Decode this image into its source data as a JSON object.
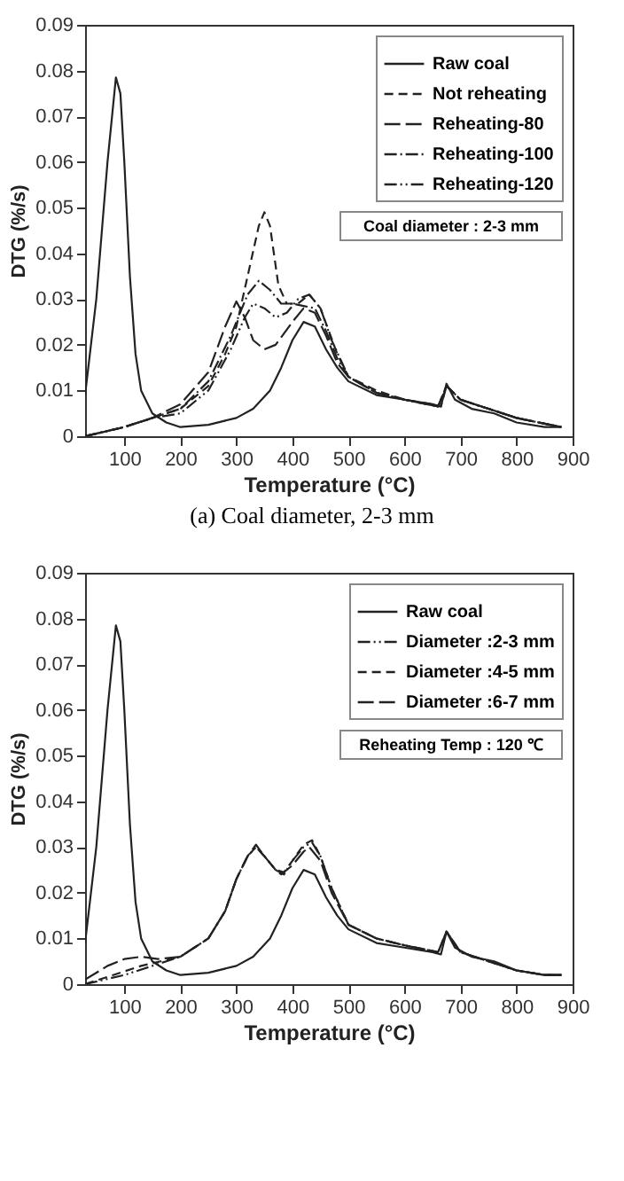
{
  "chart_data": [
    {
      "type": "line",
      "xlabel": "Temperature (°C)",
      "ylabel": "DTG (%/s)",
      "xlim": [
        30,
        900
      ],
      "ylim": [
        0,
        0.09
      ],
      "xticks": [
        100,
        200,
        300,
        400,
        500,
        600,
        700,
        800,
        900
      ],
      "yticks": [
        0,
        0.01,
        0.02,
        0.03,
        0.04,
        0.05,
        0.06,
        0.07,
        0.08,
        0.09
      ],
      "grid": false,
      "legend": "top right",
      "marker": "none",
      "annotations": [
        "Coal diameter : 2-3 mm",
        "(a) Coal diameter, 2-3 mm"
      ],
      "series": [
        {
          "name": "Raw coal",
          "color": "#222222",
          "line_style": "solid",
          "x": [
            30,
            50,
            70,
            85,
            93,
            100,
            110,
            120,
            130,
            150,
            175,
            200,
            250,
            300,
            330,
            360,
            380,
            400,
            420,
            440,
            460,
            480,
            500,
            550,
            600,
            650,
            665,
            675,
            690,
            720,
            760,
            800,
            850,
            880
          ],
          "values": [
            0.009,
            0.03,
            0.06,
            0.0785,
            0.075,
            0.06,
            0.035,
            0.018,
            0.01,
            0.005,
            0.003,
            0.002,
            0.0025,
            0.004,
            0.006,
            0.01,
            0.015,
            0.021,
            0.025,
            0.024,
            0.019,
            0.015,
            0.012,
            0.009,
            0.008,
            0.007,
            0.0065,
            0.0115,
            0.008,
            0.006,
            0.005,
            0.003,
            0.002,
            0.002
          ]
        },
        {
          "name": "Not reheating",
          "color": "#222222",
          "line_style": "dashed",
          "x": [
            30,
            100,
            150,
            200,
            250,
            280,
            300,
            320,
            340,
            350,
            360,
            375,
            390,
            410,
            430,
            450,
            480,
            500,
            550,
            600,
            650,
            665,
            675,
            700,
            750,
            800,
            880
          ],
          "values": [
            0,
            0.002,
            0.004,
            0.006,
            0.011,
            0.018,
            0.024,
            0.035,
            0.046,
            0.049,
            0.046,
            0.033,
            0.029,
            0.029,
            0.031,
            0.028,
            0.018,
            0.013,
            0.01,
            0.008,
            0.007,
            0.0065,
            0.011,
            0.008,
            0.006,
            0.004,
            0.002
          ]
        },
        {
          "name": "Reheating-80",
          "color": "#222222",
          "line_style": "longdash",
          "x": [
            30,
            100,
            150,
            200,
            250,
            280,
            300,
            315,
            330,
            350,
            370,
            400,
            420,
            440,
            460,
            480,
            500,
            550,
            600,
            660,
            675,
            700,
            750,
            800,
            880
          ],
          "values": [
            0,
            0.002,
            0.004,
            0.007,
            0.014,
            0.024,
            0.0295,
            0.026,
            0.021,
            0.019,
            0.02,
            0.025,
            0.028,
            0.027,
            0.022,
            0.016,
            0.013,
            0.0095,
            0.008,
            0.0065,
            0.011,
            0.008,
            0.006,
            0.004,
            0.002
          ]
        },
        {
          "name": "Reheating-100",
          "color": "#222222",
          "line_style": "dashdot",
          "x": [
            30,
            100,
            150,
            200,
            250,
            290,
            320,
            340,
            360,
            380,
            400,
            420,
            440,
            460,
            480,
            500,
            550,
            600,
            660,
            675,
            700,
            750,
            800,
            880
          ],
          "values": [
            0,
            0.002,
            0.004,
            0.006,
            0.012,
            0.022,
            0.031,
            0.034,
            0.032,
            0.029,
            0.029,
            0.0285,
            0.028,
            0.023,
            0.017,
            0.013,
            0.0095,
            0.008,
            0.0065,
            0.011,
            0.008,
            0.006,
            0.004,
            0.002
          ]
        },
        {
          "name": "Reheating-120",
          "color": "#222222",
          "line_style": "dashdotdot",
          "x": [
            30,
            100,
            150,
            200,
            250,
            290,
            315,
            330,
            350,
            370,
            390,
            410,
            430,
            450,
            470,
            500,
            550,
            600,
            660,
            675,
            700,
            750,
            800,
            880
          ],
          "values": [
            0,
            0.002,
            0.004,
            0.005,
            0.01,
            0.019,
            0.026,
            0.029,
            0.028,
            0.026,
            0.027,
            0.03,
            0.031,
            0.028,
            0.021,
            0.013,
            0.0095,
            0.008,
            0.0065,
            0.011,
            0.008,
            0.006,
            0.004,
            0.002
          ]
        }
      ]
    },
    {
      "type": "line",
      "xlabel": "Temperature (°C)",
      "ylabel": "DTG (%/s)",
      "xlim": [
        30,
        900
      ],
      "ylim": [
        0,
        0.09
      ],
      "xticks": [
        100,
        200,
        300,
        400,
        500,
        600,
        700,
        800,
        900
      ],
      "yticks": [
        0,
        0.01,
        0.02,
        0.03,
        0.04,
        0.05,
        0.06,
        0.07,
        0.08,
        0.09
      ],
      "grid": false,
      "legend": "top right",
      "marker": "none",
      "annotations": [
        "Reheating Temp : 120 ℃"
      ],
      "series": [
        {
          "name": "Raw coal",
          "color": "#222222",
          "line_style": "solid",
          "x": [
            30,
            50,
            70,
            85,
            93,
            100,
            110,
            120,
            130,
            150,
            175,
            200,
            250,
            300,
            330,
            360,
            380,
            400,
            420,
            440,
            460,
            480,
            500,
            550,
            600,
            650,
            665,
            675,
            690,
            720,
            760,
            800,
            850,
            880
          ],
          "values": [
            0.009,
            0.03,
            0.06,
            0.0785,
            0.075,
            0.06,
            0.035,
            0.018,
            0.01,
            0.005,
            0.003,
            0.002,
            0.0025,
            0.004,
            0.006,
            0.01,
            0.015,
            0.021,
            0.025,
            0.024,
            0.019,
            0.015,
            0.012,
            0.009,
            0.008,
            0.007,
            0.0065,
            0.0115,
            0.008,
            0.006,
            0.005,
            0.003,
            0.002,
            0.002
          ]
        },
        {
          "name": "Diameter :2-3 mm",
          "color": "#222222",
          "line_style": "dashdotdot",
          "x": [
            30,
            100,
            150,
            200,
            250,
            280,
            300,
            320,
            335,
            350,
            370,
            385,
            400,
            420,
            435,
            450,
            470,
            500,
            550,
            600,
            660,
            675,
            700,
            750,
            800,
            850,
            880
          ],
          "values": [
            0,
            0.002,
            0.004,
            0.006,
            0.01,
            0.016,
            0.023,
            0.028,
            0.03,
            0.028,
            0.025,
            0.024,
            0.027,
            0.03,
            0.031,
            0.028,
            0.021,
            0.013,
            0.01,
            0.0085,
            0.007,
            0.0115,
            0.007,
            0.005,
            0.003,
            0.002,
            0.002
          ]
        },
        {
          "name": "Diameter :4-5 mm",
          "color": "#222222",
          "line_style": "dashed",
          "x": [
            30,
            80,
            130,
            200,
            250,
            280,
            300,
            320,
            335,
            350,
            370,
            385,
            400,
            420,
            435,
            450,
            470,
            500,
            550,
            600,
            660,
            675,
            700,
            750,
            800,
            850,
            880
          ],
          "values": [
            0,
            0.002,
            0.004,
            0.006,
            0.01,
            0.016,
            0.023,
            0.028,
            0.03,
            0.028,
            0.025,
            0.0245,
            0.027,
            0.0305,
            0.0315,
            0.028,
            0.021,
            0.013,
            0.01,
            0.0085,
            0.007,
            0.0115,
            0.007,
            0.005,
            0.003,
            0.002,
            0.002
          ]
        },
        {
          "name": "Diameter :6-7 mm",
          "color": "#222222",
          "line_style": "longdash",
          "x": [
            30,
            70,
            100,
            130,
            160,
            200,
            250,
            280,
            300,
            320,
            335,
            350,
            370,
            380,
            400,
            420,
            430,
            450,
            470,
            500,
            550,
            600,
            660,
            675,
            700,
            750,
            800,
            850,
            880
          ],
          "values": [
            0.001,
            0.004,
            0.0055,
            0.006,
            0.0055,
            0.006,
            0.01,
            0.016,
            0.023,
            0.028,
            0.0305,
            0.028,
            0.025,
            0.024,
            0.026,
            0.029,
            0.03,
            0.027,
            0.02,
            0.013,
            0.01,
            0.0085,
            0.007,
            0.0115,
            0.007,
            0.005,
            0.003,
            0.002,
            0.002
          ]
        }
      ]
    }
  ]
}
